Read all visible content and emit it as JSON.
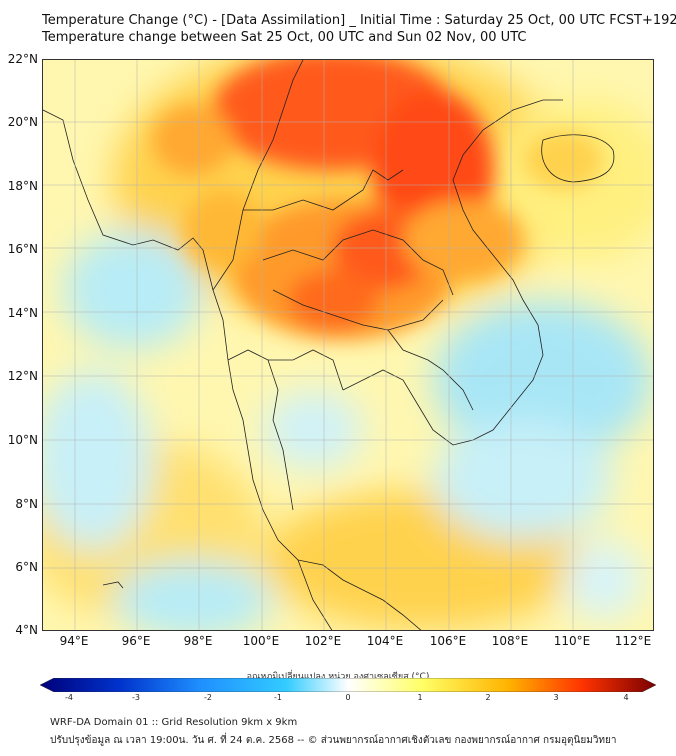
{
  "title": {
    "line1": "Temperature Change (°C) - [Data Assimilation] _ Initial Time : Saturday 25 Oct, 00 UTC FCST+192",
    "line2": "Temperature change between Sat 25 Oct, 00 UTC and Sun 02 Nov, 00 UTC"
  },
  "axes": {
    "lat_labels": [
      "22°N",
      "20°N",
      "18°N",
      "16°N",
      "14°N",
      "12°N",
      "10°N",
      "8°N",
      "6°N",
      "4°N"
    ],
    "lon_labels": [
      "94°E",
      "96°E",
      "98°E",
      "100°E",
      "102°E",
      "104°E",
      "106°E",
      "108°E",
      "110°E",
      "112°E"
    ]
  },
  "colorbar": {
    "title": "อุณหภูมิเปลี่ยนแปลง หน่วย องศาเซลเซียส (°C)",
    "ticks": [
      "-4",
      "-3",
      "-2",
      "-1",
      "0",
      "1",
      "2",
      "3",
      "4"
    ],
    "colors": [
      "#00007a",
      "#0033cc",
      "#1f8fff",
      "#33ccff",
      "#ffffff",
      "#ffff66",
      "#ffb300",
      "#ff3300",
      "#7a0000"
    ]
  },
  "footer": {
    "line1": "WRF-DA Domain 01 :: Grid Resolution 9km x 9km",
    "line2": "ปรับปรุงข้อมูล ณ เวลา 19:00น. วัน ศ. ที่ 24 ต.ค. 2568 -- © ส่วนพยากรณ์อากาศเชิงตัวเลข กองพยากรณ์อากาศ กรมอุตุนิยมวิทยา"
  }
}
